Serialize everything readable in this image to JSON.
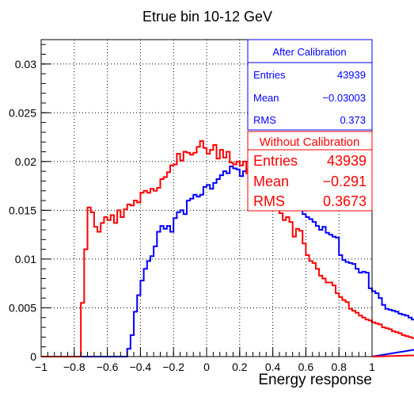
{
  "chart_data": {
    "type": "line",
    "title": "Etrue bin 10-12 GeV",
    "xlabel": "Energy response",
    "ylabel": "",
    "xlim": [
      -1,
      1
    ],
    "ylim": [
      0,
      0.0325
    ],
    "x_ticks": [
      -1,
      -0.8,
      -0.6,
      -0.4,
      -0.2,
      0,
      0.2,
      0.4,
      0.6,
      0.8,
      1
    ],
    "x_tick_labels": [
      "−1",
      "−0.8",
      "−0.6",
      "−0.4",
      "−0.2",
      "0",
      "0.2",
      "0.4",
      "0.6",
      "0.8",
      "1"
    ],
    "y_ticks": [
      0,
      0.005,
      0.01,
      0.015,
      0.02,
      0.025,
      0.03
    ],
    "y_tick_labels": [
      "0",
      "0.005",
      "0.01",
      "0.015",
      "0.02",
      "0.025",
      "0.03"
    ],
    "grid": true,
    "bin_width": 0.02,
    "series": [
      {
        "name": "After Calibration",
        "color": "#0000ff",
        "values": [
          0,
          0,
          0,
          0,
          0,
          0,
          0,
          0,
          0,
          0,
          0,
          0,
          0,
          0,
          0,
          0,
          0,
          0,
          0,
          0,
          0,
          0,
          0,
          0,
          0,
          0,
          0.0008,
          0.0022,
          0.0046,
          0.0063,
          0.0078,
          0.009,
          0.0098,
          0.0103,
          0.0113,
          0.0128,
          0.0134,
          0.0131,
          0.0134,
          0.0128,
          0.0142,
          0.0148,
          0.015,
          0.0146,
          0.016,
          0.0162,
          0.0166,
          0.0164,
          0.0166,
          0.0174,
          0.0176,
          0.0172,
          0.0178,
          0.0182,
          0.0186,
          0.019,
          0.0188,
          0.0195,
          0.0193,
          0.0192,
          0.0185,
          0.019,
          0.0192,
          0.0198,
          0.02,
          0.0204,
          0.0206,
          0.0198,
          0.0192,
          0.0201,
          0.0195,
          0.0187,
          0.0192,
          0.0178,
          0.0165,
          0.0162,
          0.0157,
          0.0153,
          0.015,
          0.0146,
          0.0143,
          0.0141,
          0.0138,
          0.0134,
          0.013,
          0.0133,
          0.0127,
          0.0125,
          0.0123,
          0.0122,
          0.0104,
          0.0099,
          0.0097,
          0.0096,
          0.0095,
          0.009,
          0.0086,
          0.0087,
          0.0086,
          0.007,
          0.0067,
          0.0065,
          0.006,
          0.0053,
          0.0049,
          0.0048,
          0.0047,
          0.0046,
          0.0044,
          0.0043,
          0.0042,
          0.004,
          0.0038,
          0.0037,
          0.0034,
          0.0033,
          0.0031,
          0.003,
          0.0028,
          0.0026,
          0.0023,
          0.0022,
          0.0021,
          0.002,
          0.0019,
          0.0018,
          0.0018,
          0.0016,
          0.0016
        ]
      },
      {
        "name": "Without Calibration",
        "color": "#ff0000",
        "values": [
          0,
          0,
          0,
          0,
          0,
          0,
          0,
          0,
          0,
          0,
          0,
          0,
          0.0055,
          0.011,
          0.0153,
          0.0148,
          0.0133,
          0.0128,
          0.0137,
          0.0143,
          0.014,
          0.0145,
          0.0137,
          0.015,
          0.0143,
          0.0151,
          0.0156,
          0.0155,
          0.016,
          0.0158,
          0.0168,
          0.017,
          0.0168,
          0.0172,
          0.017,
          0.0173,
          0.0182,
          0.0184,
          0.0189,
          0.0196,
          0.0197,
          0.0208,
          0.0201,
          0.021,
          0.0209,
          0.0207,
          0.0209,
          0.0215,
          0.0221,
          0.0214,
          0.0208,
          0.0212,
          0.0217,
          0.0203,
          0.0212,
          0.0204,
          0.021,
          0.0199,
          0.0197,
          0.02,
          0.0196,
          0.02,
          0.0188,
          0.0184,
          0.018,
          0.0176,
          0.0169,
          0.0177,
          0.0171,
          0.0165,
          0.015,
          0.0157,
          0.0147,
          0.014,
          0.0143,
          0.0138,
          0.0123,
          0.0131,
          0.0129,
          0.0116,
          0.0104,
          0.0098,
          0.0096,
          0.009,
          0.0083,
          0.008,
          0.0076,
          0.0076,
          0.0073,
          0.0065,
          0.0061,
          0.0058,
          0.0056,
          0.0049,
          0.0047,
          0.0045,
          0.0042,
          0.004,
          0.0038,
          0.0037,
          0.0035,
          0.0034,
          0.0033,
          0.003,
          0.0029,
          0.0028,
          0.0026,
          0.0025,
          0.0024,
          0.0022,
          0.0021,
          0.002,
          0.0019,
          0.0017,
          0.0016,
          0.0015,
          0.0014,
          0.0013,
          0.0012,
          0.0011,
          0.001,
          0.0009,
          0.0008,
          0.0007,
          0.0006,
          0.0005,
          0.0004,
          0.0003,
          0.0003,
          0.0003
        ]
      }
    ],
    "stats_boxes": [
      {
        "title": "After Calibration",
        "color": "#0000ff",
        "entries_label": "Entries",
        "entries_value": "43939",
        "mean_label": "Mean",
        "mean_value": "−0.03003",
        "rms_label": "RMS",
        "rms_value": "0.373"
      },
      {
        "title": "Without Calibration",
        "color": "#ff0000",
        "entries_label": "Entries",
        "entries_value": "43939",
        "mean_label": "Mean",
        "mean_value": "−0.291",
        "rms_label": "RMS",
        "rms_value": "0.3673"
      }
    ]
  }
}
